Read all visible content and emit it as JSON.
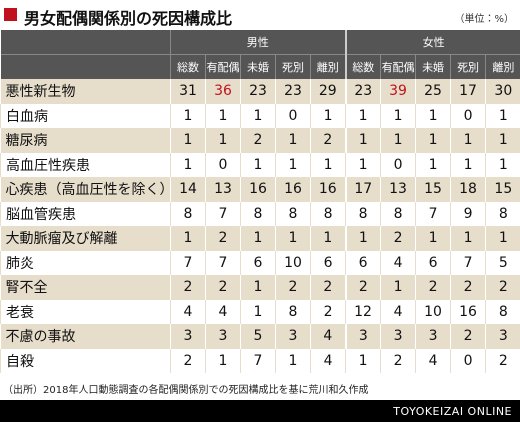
{
  "header": {
    "title": "男女配偶関係別の死因構成比",
    "unit": "（単位：%）"
  },
  "table": {
    "groups": [
      {
        "name": "男性",
        "columns": [
          "総数",
          "有配偶",
          "未婚",
          "死別",
          "離別"
        ]
      },
      {
        "name": "女性",
        "columns": [
          "総数",
          "有配偶",
          "未婚",
          "死別",
          "離別"
        ]
      }
    ],
    "rows": [
      {
        "label": "悪性新生物",
        "values": [
          31,
          36,
          23,
          23,
          29,
          23,
          39,
          25,
          17,
          30
        ]
      },
      {
        "label": "白血病",
        "values": [
          1,
          1,
          1,
          0,
          1,
          1,
          1,
          1,
          0,
          1
        ]
      },
      {
        "label": "糖尿病",
        "values": [
          1,
          1,
          2,
          1,
          2,
          1,
          1,
          1,
          1,
          1
        ]
      },
      {
        "label": "高血圧性疾患",
        "values": [
          1,
          0,
          1,
          1,
          1,
          1,
          0,
          1,
          1,
          1
        ]
      },
      {
        "label": "心疾患（高血圧性を除く）",
        "values": [
          14,
          13,
          16,
          16,
          16,
          17,
          13,
          15,
          18,
          15
        ]
      },
      {
        "label": "脳血管疾患",
        "values": [
          8,
          7,
          8,
          8,
          8,
          8,
          8,
          7,
          9,
          8
        ]
      },
      {
        "label": "大動脈瘤及び解離",
        "values": [
          1,
          2,
          1,
          1,
          1,
          1,
          2,
          1,
          1,
          1
        ]
      },
      {
        "label": "肺炎",
        "values": [
          7,
          7,
          6,
          10,
          6,
          6,
          4,
          6,
          7,
          5
        ]
      },
      {
        "label": "腎不全",
        "values": [
          2,
          2,
          1,
          2,
          2,
          2,
          1,
          2,
          2,
          2
        ]
      },
      {
        "label": "老衰",
        "values": [
          4,
          4,
          1,
          8,
          2,
          12,
          4,
          10,
          16,
          8
        ]
      },
      {
        "label": "不慮の事故",
        "values": [
          3,
          3,
          5,
          3,
          4,
          3,
          3,
          3,
          2,
          3
        ]
      },
      {
        "label": "自殺",
        "values": [
          2,
          1,
          7,
          1,
          4,
          1,
          2,
          4,
          0,
          2
        ]
      }
    ]
  },
  "footer": {
    "source": "（出所）2018年人口動態調査の各配偶関係別での死因構成比を基に荒川和久作成",
    "brand": "TOYOKEIZAI ONLINE"
  }
}
